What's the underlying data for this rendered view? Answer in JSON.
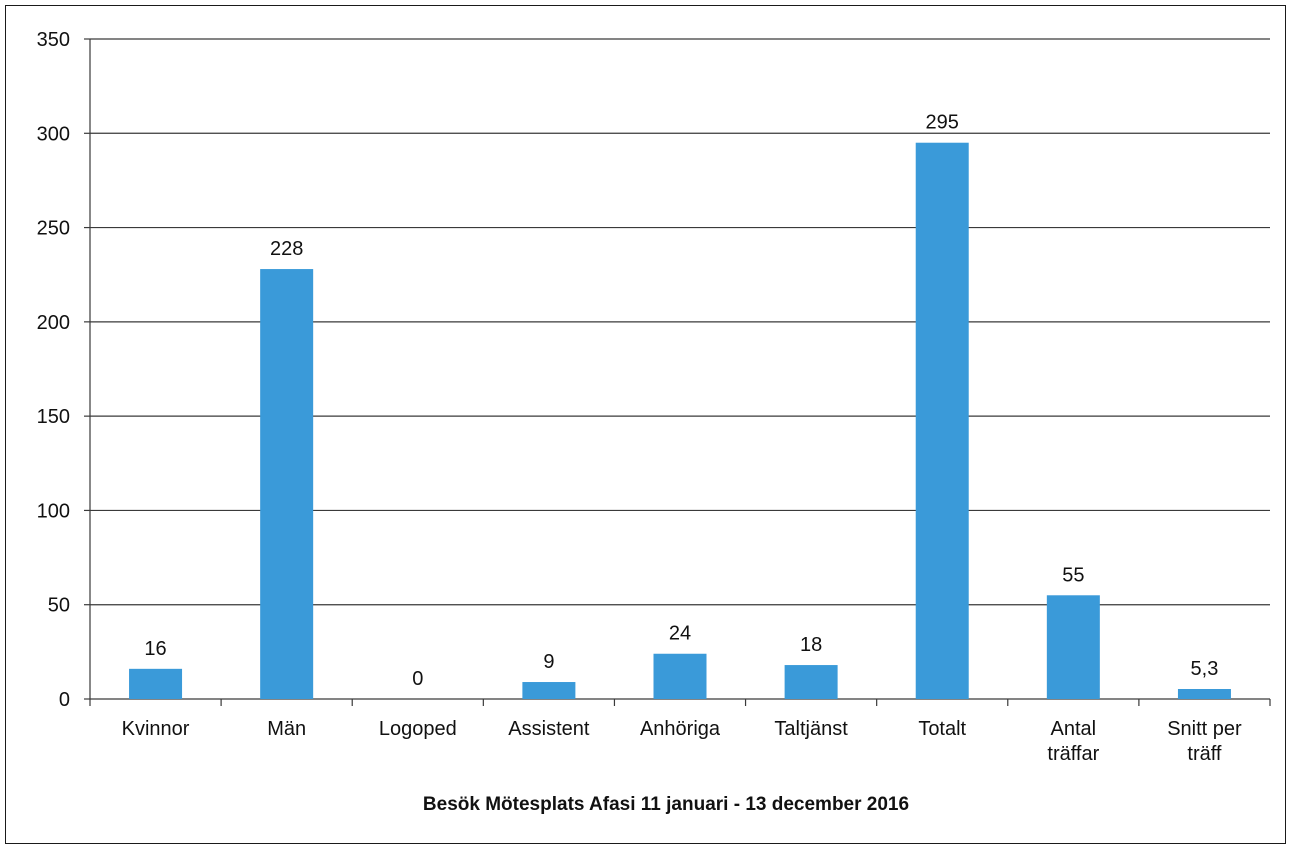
{
  "chart_data": {
    "type": "bar",
    "title": "",
    "xlabel": "Besök Mötesplats Afasi 11 januari - 13 december 2016",
    "ylabel": "",
    "ylim": [
      0,
      350
    ],
    "yticks": [
      0,
      50,
      100,
      150,
      200,
      250,
      300,
      350
    ],
    "grid": true,
    "legend": "none",
    "bar_color": "#3a9ad9",
    "categories": [
      [
        "Kvinnor"
      ],
      [
        "Män"
      ],
      [
        "Logoped"
      ],
      [
        "Assistent"
      ],
      [
        "Anhöriga"
      ],
      [
        "Taltjänst"
      ],
      [
        "Totalt"
      ],
      [
        "Antal",
        "träffar"
      ],
      [
        "Snitt per",
        "träff"
      ]
    ],
    "values": [
      16,
      228,
      0,
      9,
      24,
      18,
      295,
      55,
      5.3
    ],
    "data_labels": [
      "16",
      "228",
      "0",
      "9",
      "24",
      "18",
      "295",
      "55",
      "5,3"
    ]
  }
}
